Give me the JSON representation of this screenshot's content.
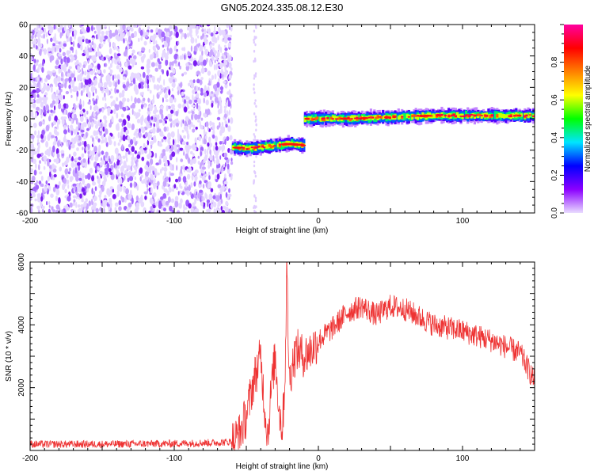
{
  "title": "GN05.2024.335.08.12.E30",
  "chart_data": [
    {
      "type": "heatmap",
      "xlabel": "Height of straight line (km)",
      "ylabel": "Frequency (Hz)",
      "xlim": [
        -200,
        150
      ],
      "ylim": [
        -60,
        60
      ],
      "xticks": [
        -200,
        -100,
        0,
        100
      ],
      "yticks": [
        -60,
        -40,
        -20,
        0,
        20,
        40,
        60
      ],
      "grid": false,
      "colorbar": {
        "label": "Normalized spectral amplitude",
        "range": [
          0,
          1
        ],
        "ticks": [
          "0.0",
          "0.2",
          "0.4",
          "0.6",
          "0.8"
        ],
        "colors": [
          "#e9dcff",
          "#8b00ff",
          "#0000ff",
          "#00e5ff",
          "#00ff00",
          "#ffff00",
          "#ff8000",
          "#ff0000",
          "#ff00a0"
        ]
      },
      "regions": [
        {
          "x": [
            -200,
            -60
          ],
          "y": [
            -60,
            60
          ],
          "amplitude": 0.05,
          "pattern": "scattered noise"
        },
        {
          "x": [
            -60,
            -10
          ],
          "y": [
            -21,
            -15
          ],
          "amplitude": 0.9,
          "pattern": "band"
        },
        {
          "x": [
            -10,
            150
          ],
          "y": [
            -2,
            3
          ],
          "amplitude": 0.95,
          "pattern": "band"
        }
      ],
      "band_centers": [
        {
          "x": -60,
          "y": -18
        },
        {
          "x": -50,
          "y": -19
        },
        {
          "x": -40,
          "y": -18
        },
        {
          "x": -30,
          "y": -17
        },
        {
          "x": -20,
          "y": -16
        },
        {
          "x": -10,
          "y": -17
        },
        {
          "x": -10,
          "y": 0
        },
        {
          "x": 0,
          "y": 0
        },
        {
          "x": 20,
          "y": 0
        },
        {
          "x": 50,
          "y": 1
        },
        {
          "x": 80,
          "y": 2
        },
        {
          "x": 100,
          "y": 2
        },
        {
          "x": 150,
          "y": 2
        }
      ]
    },
    {
      "type": "line",
      "xlabel": "Height of straight line (km)",
      "ylabel": "SNR (10 * v/v)",
      "xlim": [
        -200,
        150
      ],
      "ylim": [
        0,
        6000
      ],
      "xticks": [
        -200,
        -100,
        0,
        100
      ],
      "yticks": [
        2000,
        4000,
        6000
      ],
      "grid": false,
      "series": [
        {
          "color": "#ee3333",
          "x": [
            -200,
            -150,
            -100,
            -70,
            -60,
            -55,
            -50,
            -45,
            -40,
            -37,
            -35,
            -33,
            -30,
            -27,
            -25,
            -23,
            -22,
            -21,
            -20,
            -18,
            -15,
            -10,
            -5,
            0,
            10,
            20,
            30,
            40,
            50,
            60,
            80,
            100,
            120,
            140,
            150
          ],
          "y": [
            200,
            200,
            220,
            250,
            280,
            500,
            1100,
            2200,
            3000,
            1200,
            500,
            1800,
            3000,
            1200,
            700,
            2500,
            6000,
            3800,
            2200,
            2800,
            3200,
            3000,
            3200,
            3500,
            3900,
            4400,
            4600,
            4300,
            4600,
            4500,
            4000,
            3800,
            3500,
            3100,
            2200
          ]
        }
      ]
    }
  ]
}
